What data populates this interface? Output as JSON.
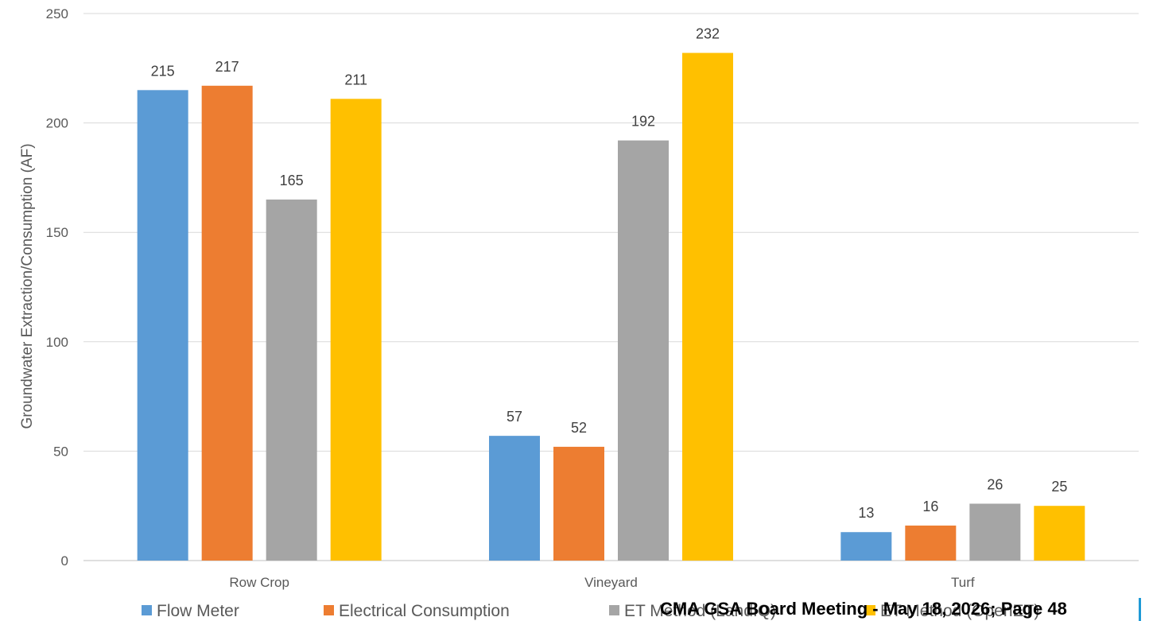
{
  "chart_data": {
    "type": "bar",
    "title": "",
    "xlabel": "",
    "ylabel": "Groundwater Extraction/Consumption (AF)",
    "ylim": [
      0,
      250
    ],
    "yticks": [
      0,
      50,
      100,
      150,
      200,
      250
    ],
    "grid": true,
    "legend_position": "bottom",
    "categories": [
      "Row Crop",
      "Vineyard",
      "Turf"
    ],
    "series": [
      {
        "name": "Flow Meter",
        "color": "#5b9bd5",
        "values": [
          215,
          57,
          13
        ]
      },
      {
        "name": "Electrical Consumption",
        "color": "#ed7d31",
        "values": [
          217,
          52,
          16
        ]
      },
      {
        "name": "ET Method (LandIQ)",
        "color": "#a5a5a5",
        "values": [
          165,
          192,
          26
        ]
      },
      {
        "name": "ET Method (OpenET)",
        "color": "#ffc000",
        "values": [
          211,
          232,
          25
        ]
      }
    ]
  },
  "footer": {
    "overlay_text": "CMA GSA Board Meeting - May 18, 2026; Page 48",
    "accent_color": "#1f9ad6"
  }
}
